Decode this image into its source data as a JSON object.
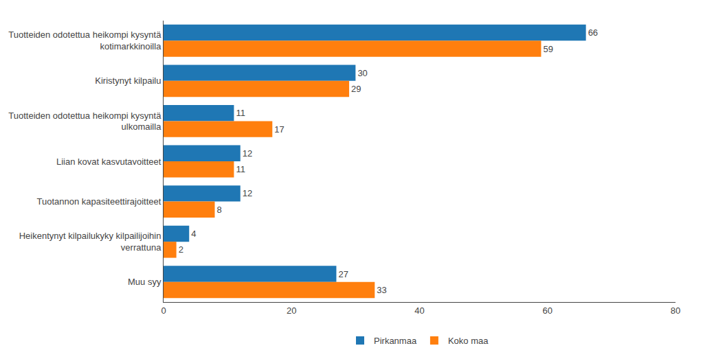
{
  "chart_data": {
    "type": "bar",
    "orientation": "horizontal",
    "categories": [
      "Tuotteiden odotettua heikompi kysyntä\nkotimarkkinoilla",
      "Kiristynyt kilpailu",
      "Tuotteiden odotettua heikompi kysyntä\nulkomailla",
      "Liian kovat kasvutavoitteet",
      "Tuotannon kapasiteettirajoitteet",
      "Heikentynyt kilpailukyky kilpailijoihin\nverrattuna",
      "Muu syy"
    ],
    "series": [
      {
        "name": "Pirkanmaa",
        "values": [
          66,
          30,
          11,
          12,
          12,
          4,
          27
        ]
      },
      {
        "name": "Koko maa",
        "values": [
          59,
          29,
          17,
          11,
          8,
          2,
          33
        ]
      }
    ],
    "xlim": [
      0,
      80
    ],
    "xticks": [
      0,
      20,
      40,
      60,
      80
    ],
    "grid": false,
    "legend": "bottom",
    "data_labels": true
  }
}
